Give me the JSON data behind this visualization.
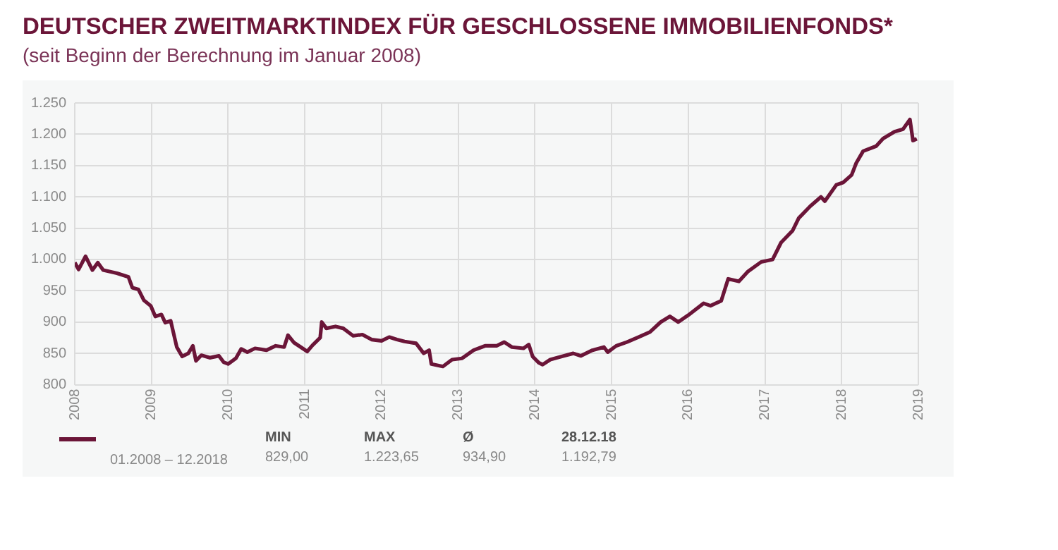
{
  "chart_data": {
    "type": "line",
    "title": "DEUTSCHER ZWEITMARKTINDEX FÜR GESCHLOSSENE IMMOBILIENFONDS*",
    "subtitle": "(seit Beginn der Berechnung im Januar 2008)",
    "annotations": [
      "01.2008 – 12.2018",
      "MIN",
      "829,00",
      "MAX",
      "1.223,65",
      "Ø",
      "934,90",
      "28.12.18",
      "1.192,79"
    ],
    "xlim": [
      2008,
      2019
    ],
    "xticks": [
      2008,
      2009,
      2010,
      2011,
      2012,
      2013,
      2014,
      2015,
      2016,
      2017,
      2018,
      2019
    ],
    "ylim": [
      800,
      1250
    ],
    "yticks": [
      800,
      850,
      900,
      950,
      {
        "value": 1000,
        "label": "1.000"
      },
      {
        "value": 1050,
        "label": "1.050"
      },
      {
        "value": 1100,
        "label": "1.100"
      },
      {
        "value": 1150,
        "label": "1.150"
      },
      {
        "value": 1200,
        "label": "1.200"
      },
      {
        "value": 1250,
        "label": "1.250"
      }
    ],
    "grid": true,
    "legend": false,
    "marker": "none",
    "line_style": "solid",
    "series": [
      {
        "color": "#6b1538",
        "x": [
          2008.0,
          2008.05,
          2008.14,
          2008.23,
          2008.3,
          2008.37,
          2008.55,
          2008.7,
          2008.75,
          2008.83,
          2008.9,
          2008.99,
          2009.05,
          2009.13,
          2009.18,
          2009.25,
          2009.33,
          2009.4,
          2009.48,
          2009.54,
          2009.58,
          2009.65,
          2009.76,
          2009.88,
          2009.94,
          2010.0,
          2010.1,
          2010.17,
          2010.25,
          2010.35,
          2010.5,
          2010.62,
          2010.73,
          2010.78,
          2010.86,
          2010.97,
          2011.03,
          2011.1,
          2011.2,
          2011.22,
          2011.28,
          2011.4,
          2011.5,
          2011.63,
          2011.75,
          2011.87,
          2012.0,
          2012.1,
          2012.2,
          2012.3,
          2012.45,
          2012.55,
          2012.62,
          2012.65,
          2012.8,
          2012.92,
          2013.05,
          2013.2,
          2013.35,
          2013.5,
          2013.6,
          2013.7,
          2013.85,
          2013.92,
          2013.97,
          2014.05,
          2014.1,
          2014.2,
          2014.35,
          2014.5,
          2014.6,
          2014.75,
          2014.9,
          2014.95,
          2015.06,
          2015.2,
          2015.35,
          2015.5,
          2015.64,
          2015.76,
          2015.87,
          2016.0,
          2016.2,
          2016.29,
          2016.43,
          2016.52,
          2016.66,
          2016.78,
          2016.95,
          2017.1,
          2017.21,
          2017.36,
          2017.44,
          2017.59,
          2017.73,
          2017.78,
          2017.93,
          2018.02,
          2018.13,
          2018.19,
          2018.28,
          2018.45,
          2018.54,
          2018.69,
          2018.8,
          2018.89,
          2018.93,
          2018.98
        ],
        "values": [
          995,
          984,
          1005,
          983,
          995,
          983,
          978,
          972,
          955,
          952,
          935,
          926,
          909,
          912,
          899,
          902,
          860,
          845,
          850,
          862,
          838,
          847,
          843,
          846,
          836,
          833,
          842,
          857,
          852,
          858,
          855,
          862,
          860,
          879,
          867,
          858,
          853,
          863,
          875,
          900,
          890,
          893,
          890,
          878,
          880,
          872,
          870,
          876,
          872,
          869,
          866,
          850,
          855,
          833,
          829,
          840,
          842,
          855,
          862,
          862,
          868,
          860,
          858,
          864,
          845,
          835,
          832,
          840,
          845,
          850,
          846,
          855,
          860,
          852,
          862,
          868,
          876,
          884,
          900,
          909,
          900,
          911,
          930,
          926,
          934,
          969,
          965,
          981,
          996,
          1000,
          1027,
          1046,
          1066,
          1085,
          1100,
          1093,
          1119,
          1123,
          1135,
          1154,
          1173,
          1181,
          1193,
          1204,
          1208,
          1223.65,
          1190,
          1192.79
        ]
      }
    ]
  }
}
